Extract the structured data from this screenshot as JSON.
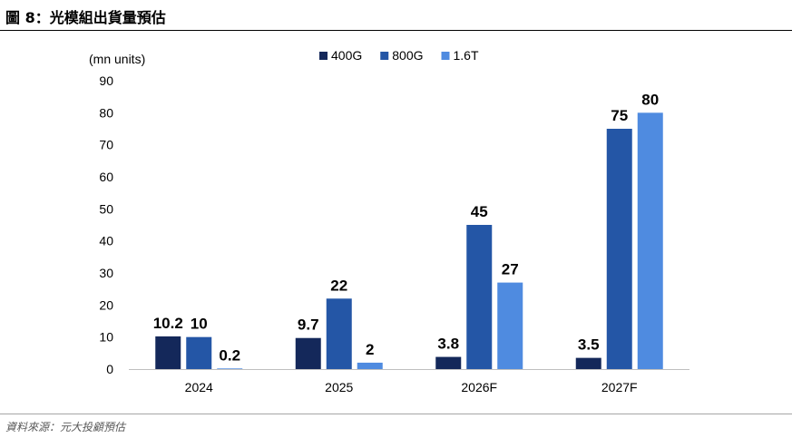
{
  "figure": {
    "title": "圖 8：光模組出貨量預估",
    "source": "資料來源：元大投顧預估"
  },
  "chart_data": {
    "type": "bar",
    "title": "圖 8：光模組出貨量預估",
    "xlabel": "",
    "ylabel": "(mn units)",
    "categories": [
      "2024",
      "2025",
      "2026F",
      "2027F"
    ],
    "series": [
      {
        "name": "400G",
        "color": "#14285a",
        "values": [
          10.2,
          9.7,
          3.8,
          3.5
        ]
      },
      {
        "name": "800G",
        "color": "#2456a6",
        "values": [
          10,
          22,
          45,
          75
        ]
      },
      {
        "name": "1.6T",
        "color": "#4f8be0",
        "values": [
          0.2,
          2,
          27,
          80
        ]
      }
    ],
    "ylim": [
      0,
      90
    ],
    "yticks": [
      0,
      10,
      20,
      30,
      40,
      50,
      60,
      70,
      80,
      90
    ],
    "grid": false,
    "legend_position": "top-center",
    "data_labels": true
  }
}
